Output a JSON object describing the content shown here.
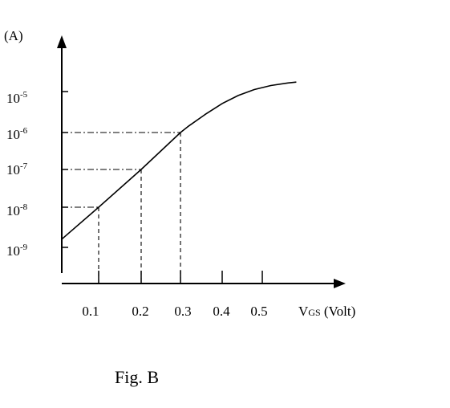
{
  "chart_data": {
    "type": "line",
    "y_unit_label": "(A)",
    "xlabel": {
      "main": "V",
      "sub": "GS",
      "rest": " (Volt)"
    },
    "caption": "Fig. B",
    "x_ticks": [
      "0.1",
      "0.2",
      "0.3",
      "0.4",
      "0.5"
    ],
    "y_ticks": [
      {
        "base": "10",
        "exp": "-5"
      },
      {
        "base": "10",
        "exp": "-6"
      },
      {
        "base": "10",
        "exp": "-7"
      },
      {
        "base": "10",
        "exp": "-8"
      },
      {
        "base": "10",
        "exp": "-9"
      }
    ],
    "y_scale": "log",
    "series": [
      {
        "x": [
          0.0,
          0.1,
          0.2,
          0.3,
          0.32,
          0.36,
          0.4,
          0.44,
          0.48,
          0.52,
          0.56,
          0.58
        ],
        "y": [
          1.6e-09,
          1e-08,
          1e-07,
          1e-06,
          1.45e-06,
          2.8e-06,
          5.1e-06,
          8e-06,
          1.12e-05,
          1.4e-05,
          1.62e-05,
          1.7e-05
        ]
      }
    ],
    "reference_points": [
      {
        "x": 0.1,
        "y": 1e-08
      },
      {
        "x": 0.2,
        "y": 1e-07
      },
      {
        "x": 0.3,
        "y": 1e-06
      }
    ],
    "grid": false,
    "line_color": "#000000"
  }
}
